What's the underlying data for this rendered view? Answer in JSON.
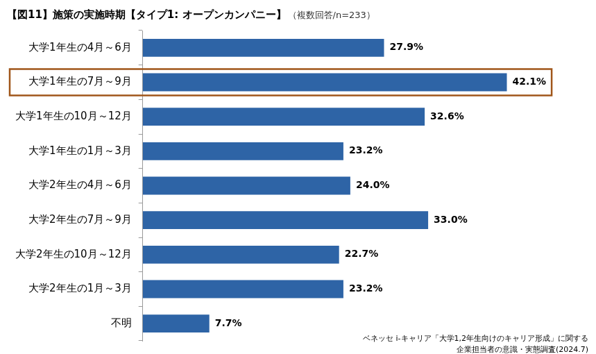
{
  "chart_data": {
    "type": "bar",
    "orientation": "horizontal",
    "title": "【図11】施策の実施時期【タイプ1: オープンカンパニー】",
    "subtitle": "（複数回答/n=233）",
    "categories": [
      "大学1年生の4月～6月",
      "大学1年生の7月～9月",
      "大学1年生の10月～12月",
      "大学1年生の1月～3月",
      "大学2年生の4月～6月",
      "大学2年生の7月～9月",
      "大学2年生の10月～12月",
      "大学2年生の1月～3月",
      "不明"
    ],
    "values": [
      27.9,
      42.1,
      32.6,
      23.2,
      24.0,
      33.0,
      22.7,
      23.2,
      7.7
    ],
    "value_labels": [
      "27.9%",
      "42.1%",
      "32.6%",
      "23.2%",
      "24.0%",
      "33.0%",
      "22.7%",
      "23.2%",
      "7.7%"
    ],
    "color": "#2e64a6",
    "xlim": [
      0,
      50
    ],
    "xticks": [
      0,
      50
    ],
    "grid": false,
    "tick_labels": "y",
    "data_labels": true,
    "annotations": [
      "ベネッセ i-キャリア「大学1,2年生向けのキャリア形成」に関する",
      "企業担当者の意識・実態調査(2024.7)"
    ]
  }
}
